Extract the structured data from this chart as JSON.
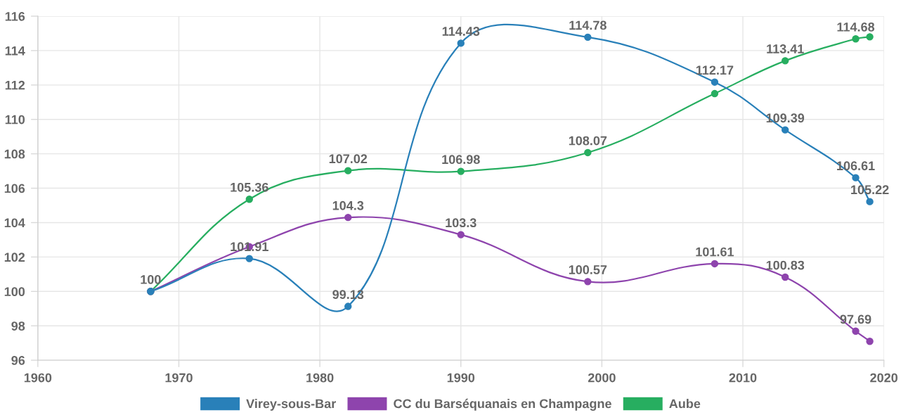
{
  "chart_data": {
    "type": "line",
    "x": [
      1968,
      1975,
      1982,
      1990,
      1999,
      2008,
      2013,
      2018,
      2019
    ],
    "series": [
      {
        "name": "Virey-sous-Bar",
        "color": "#2980b9",
        "values": [
          100,
          101.91,
          99.13,
          114.43,
          114.78,
          112.17,
          109.39,
          106.61,
          105.22
        ],
        "value_labels": [
          "100",
          "101.91",
          "99.13",
          "114.43",
          "114.78",
          "112.17",
          "109.39",
          "106.61",
          "105.22"
        ]
      },
      {
        "name": "CC du Barséquanais en Champagne",
        "color": "#8e44ad",
        "values": [
          100,
          102.6,
          104.3,
          103.3,
          100.57,
          101.61,
          100.83,
          97.69,
          97.1
        ],
        "value_labels": [
          null,
          null,
          "104.3",
          "103.3",
          "100.57",
          "101.61",
          "100.83",
          "97.69",
          null
        ]
      },
      {
        "name": "Aube",
        "color": "#27ae60",
        "values": [
          100,
          105.36,
          107.02,
          106.98,
          108.07,
          111.5,
          113.41,
          114.68,
          114.8
        ],
        "value_labels": [
          null,
          "105.36",
          "107.02",
          "106.98",
          "108.07",
          null,
          "113.41",
          "114.68",
          null
        ]
      }
    ],
    "xlim": [
      1960,
      2020
    ],
    "xticks": [
      1960,
      1970,
      1980,
      1990,
      2000,
      2010,
      2020
    ],
    "ylim": [
      96,
      116
    ],
    "yticks": [
      96,
      98,
      100,
      102,
      104,
      106,
      108,
      110,
      112,
      114,
      116
    ],
    "grid": true,
    "legend": "bottom",
    "marker": "circle",
    "line_style": "solid"
  }
}
